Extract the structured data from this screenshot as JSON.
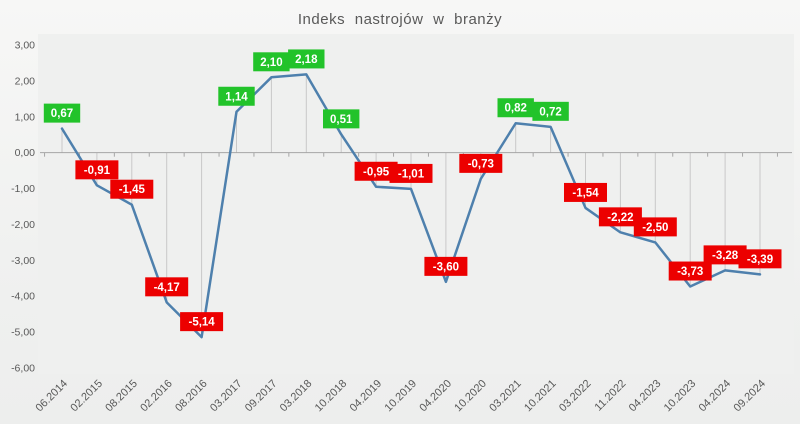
{
  "chart_data": {
    "type": "line",
    "title": "Indeks nastrojów w branży",
    "categories": [
      "06.2014",
      "02.2015",
      "08.2015",
      "02.2016",
      "08.2016",
      "03.2017",
      "09.2017",
      "03.2018",
      "10.2018",
      "04.2019",
      "10.2019",
      "04.2020",
      "10.2020",
      "03.2021",
      "10.2021",
      "03.2022",
      "11.2022",
      "04.2023",
      "10.2023",
      "04.2024",
      "09.2024"
    ],
    "values": [
      0.67,
      -0.91,
      -1.45,
      -4.17,
      -5.14,
      1.14,
      2.1,
      2.18,
      0.51,
      -0.95,
      -1.01,
      -3.6,
      -0.73,
      0.82,
      0.72,
      -1.54,
      -2.22,
      -2.5,
      -3.73,
      -3.28,
      -3.39
    ],
    "labels": [
      "0,67",
      "-0,91",
      "-1,45",
      "-4,17",
      "-5,14",
      "1,14",
      "2,10",
      "2,18",
      "0,51",
      "-0,95",
      "-1,01",
      "-3,60",
      "-0,73",
      "0,82",
      "0,72",
      "-1,54",
      "-2,22",
      "-2,50",
      "-3,73",
      "-3,28",
      "-3,39"
    ],
    "ylim": [
      -6,
      3
    ],
    "ytick_step": 1,
    "ytick_labels": [
      "3,00",
      "2,00",
      "1,00",
      "0,00",
      "-1,00",
      "-2,00",
      "-3,00",
      "-4,00",
      "-5,00",
      "-6,00"
    ],
    "grid": "drop-lines-to-zero-axis",
    "legend": null,
    "colors": {
      "line": "#4e80ad",
      "positive": "#22c32a",
      "negative": "#ec0000",
      "label_text": "#ffffff",
      "axis": "#a6a6a6",
      "grid": "#c8c8c8",
      "text": "#595959",
      "background": "#f3f4f3"
    }
  }
}
